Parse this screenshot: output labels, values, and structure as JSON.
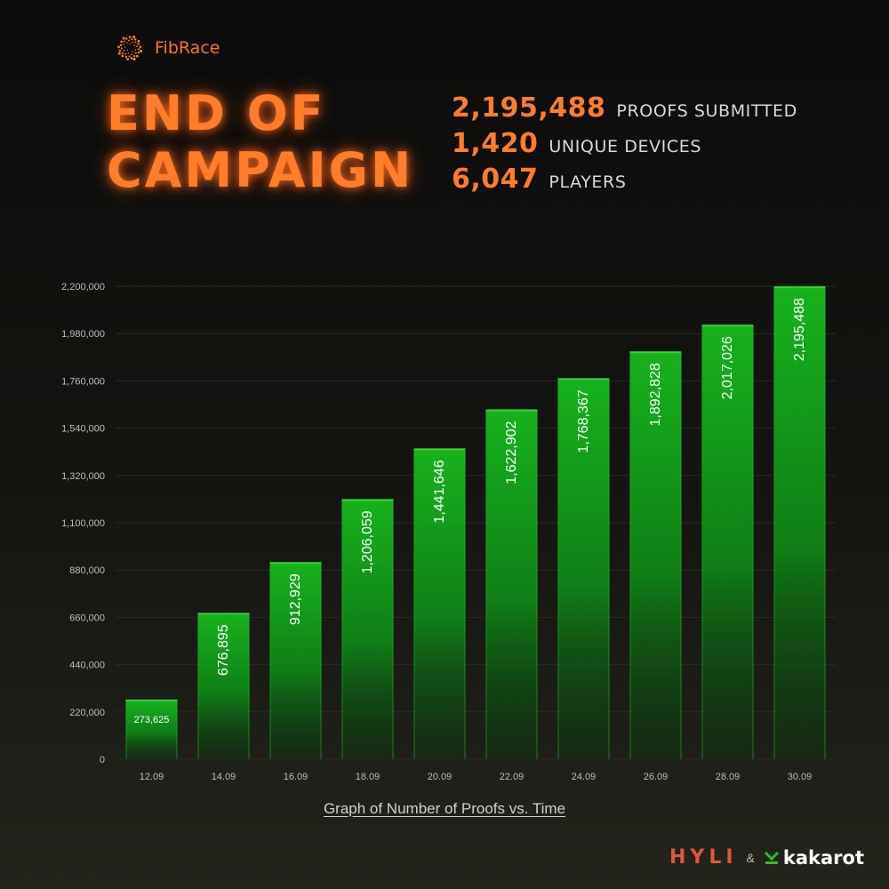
{
  "brand": {
    "name": "FibRace",
    "logo_icon": "spiral-dots-icon"
  },
  "headline": {
    "line1": "END OF",
    "line2": "CAMPAIGN"
  },
  "stats": [
    {
      "value": "2,195,488",
      "label": "PROOFS SUBMITTED"
    },
    {
      "value": "1,420",
      "label": "UNIQUE DEVICES"
    },
    {
      "value": "6,047",
      "label": "PLAYERS"
    }
  ],
  "colors": {
    "accent": "#ff7d2a",
    "bar_top": "#17b21c",
    "bar_bottom": "#0b3a10",
    "grid": "#2a2a25"
  },
  "chart_data": {
    "type": "bar",
    "categories": [
      "12.09",
      "14.09",
      "16.09",
      "18.09",
      "20.09",
      "22.09",
      "24.09",
      "26.09",
      "28.09",
      "30.09"
    ],
    "values": [
      273625,
      676895,
      912929,
      1206059,
      1441646,
      1622902,
      1768367,
      1892828,
      2017026,
      2195488
    ],
    "data_labels": [
      "273,625",
      "676,895",
      "912,929",
      "1,206,059",
      "1,441,646",
      "1,622,902",
      "1,768,367",
      "1,892,828",
      "2,017,026",
      "2,195,488"
    ],
    "yticks": [
      0,
      220000,
      440000,
      660000,
      880000,
      1100000,
      1320000,
      1540000,
      1760000,
      1980000,
      2200000
    ],
    "ytick_labels": [
      "0",
      "220,000",
      "440,000",
      "660,000",
      "880,000",
      "1,100,000",
      "1,320,000",
      "1,540,000",
      "1,760,000",
      "1,980,000",
      "2,200,000"
    ],
    "ylim": [
      0,
      2200000
    ],
    "grid": true,
    "caption": "Graph of Number of Proofs vs. Time"
  },
  "footer": {
    "partner1": "HYLI",
    "separator": "&",
    "partner2": "kakarot",
    "partner2_icon": "kakarot-y-icon"
  }
}
